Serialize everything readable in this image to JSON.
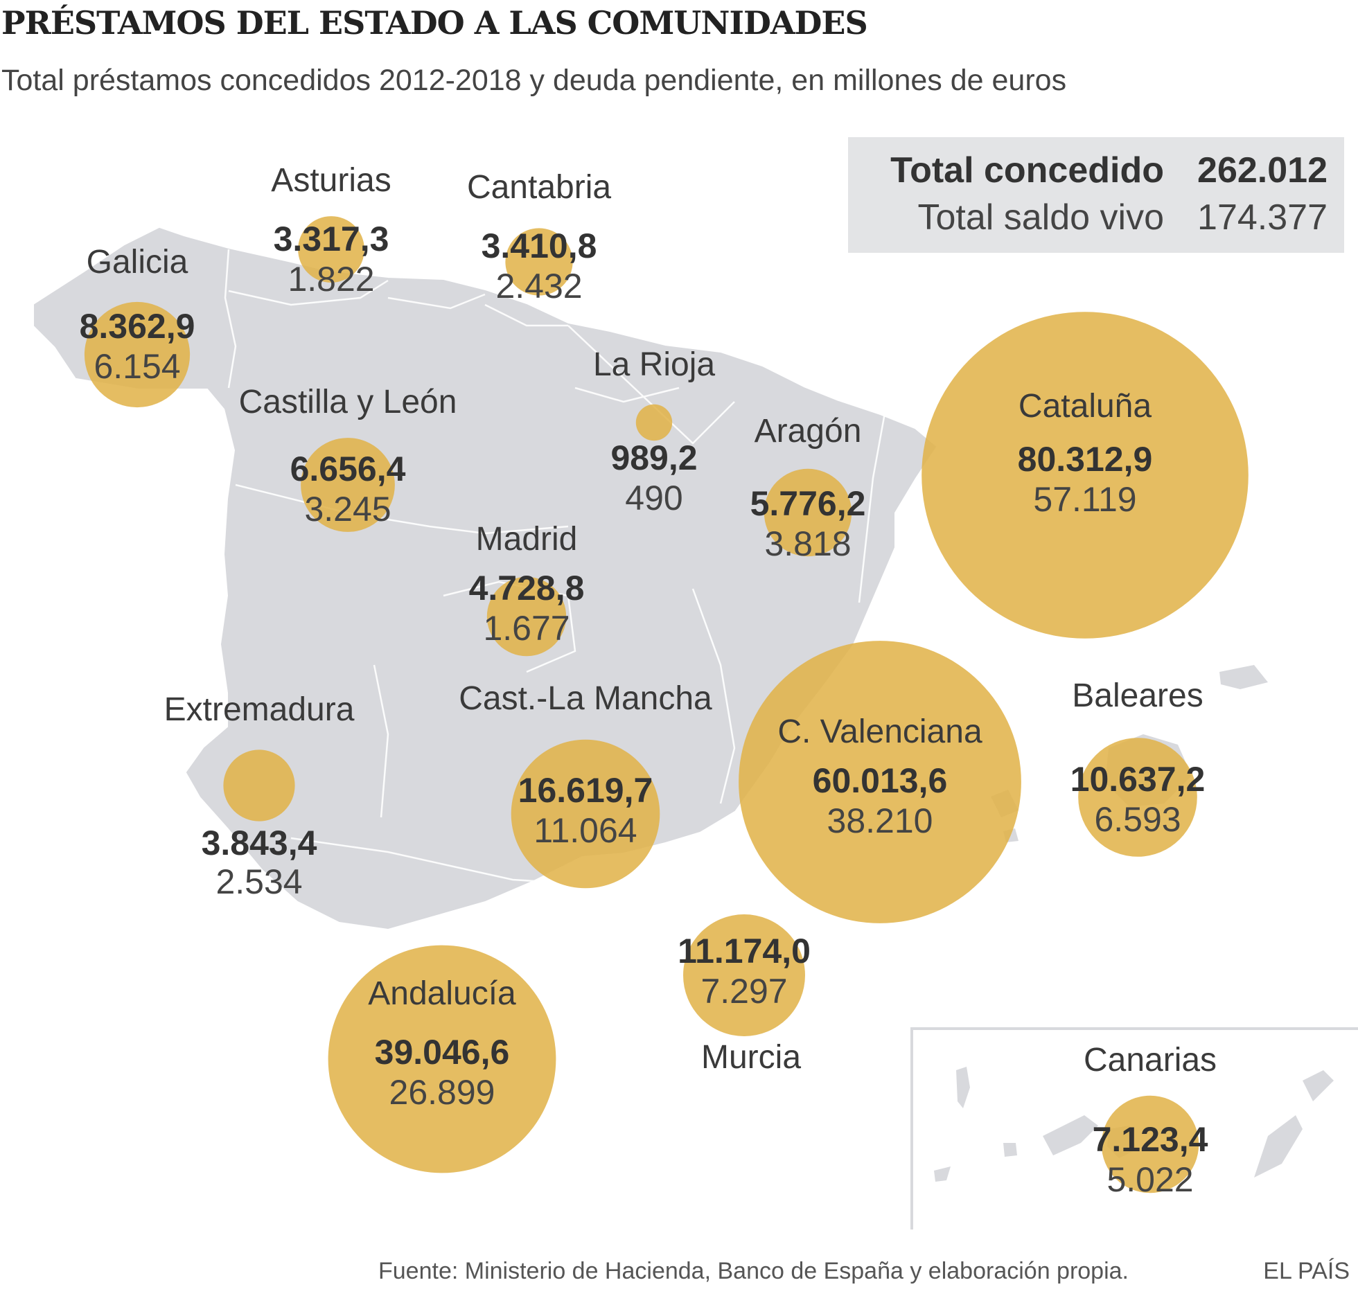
{
  "header": {
    "title": "PRÉSTAMOS DEL ESTADO A LAS COMUNIDADES",
    "subtitle": "Total préstamos concedidos 2012-2018 y deuda pendiente, en millones de euros"
  },
  "totals": {
    "granted_label": "Total concedido",
    "granted_value": "262.012",
    "outstanding_label": "Total saldo vivo",
    "outstanding_value": "174.377"
  },
  "colors": {
    "bubble": "#e1b248",
    "land": "#d8d9dd",
    "border": "#ffffff",
    "text": "#333333"
  },
  "chart_data": {
    "type": "proportional-symbol-map",
    "size_metric": "Total préstamos concedidos 2012-2018",
    "regions": [
      {
        "name": "Galicia",
        "granted": 8362.9,
        "outstanding": 6154,
        "granted_label": "8.362,9",
        "outstanding_label": "6.154"
      },
      {
        "name": "Asturias",
        "granted": 3317.3,
        "outstanding": 1822,
        "granted_label": "3.317,3",
        "outstanding_label": "1.822"
      },
      {
        "name": "Cantabria",
        "granted": 3410.8,
        "outstanding": 2432,
        "granted_label": "3.410,8",
        "outstanding_label": "2.432"
      },
      {
        "name": "La Rioja",
        "granted": 989.2,
        "outstanding": 490,
        "granted_label": "989,2",
        "outstanding_label": "490"
      },
      {
        "name": "Castilla y León",
        "granted": 6656.4,
        "outstanding": 3245,
        "granted_label": "6.656,4",
        "outstanding_label": "3.245"
      },
      {
        "name": "Aragón",
        "granted": 5776.2,
        "outstanding": 3818,
        "granted_label": "5.776,2",
        "outstanding_label": "3.818"
      },
      {
        "name": "Cataluña",
        "granted": 80312.9,
        "outstanding": 57119,
        "granted_label": "80.312,9",
        "outstanding_label": "57.119"
      },
      {
        "name": "Madrid",
        "granted": 4728.8,
        "outstanding": 1677,
        "granted_label": "4.728,8",
        "outstanding_label": "1.677"
      },
      {
        "name": "Extremadura",
        "granted": 3843.4,
        "outstanding": 2534,
        "granted_label": "3.843,4",
        "outstanding_label": "2.534"
      },
      {
        "name": "Cast.-La Mancha",
        "granted": 16619.7,
        "outstanding": 11064,
        "granted_label": "16.619,7",
        "outstanding_label": "11.064"
      },
      {
        "name": "C. Valenciana",
        "granted": 60013.6,
        "outstanding": 38210,
        "granted_label": "60.013,6",
        "outstanding_label": "38.210"
      },
      {
        "name": "Baleares",
        "granted": 10637.2,
        "outstanding": 6593,
        "granted_label": "10.637,2",
        "outstanding_label": "6.593"
      },
      {
        "name": "Murcia",
        "granted": 11174.0,
        "outstanding": 7297,
        "granted_label": "11.174,0",
        "outstanding_label": "7.297"
      },
      {
        "name": "Andalucía",
        "granted": 39046.6,
        "outstanding": 26899,
        "granted_label": "39.046,6",
        "outstanding_label": "26.899"
      },
      {
        "name": "Canarias",
        "granted": 7123.4,
        "outstanding": 5022,
        "granted_label": "7.123,4",
        "outstanding_label": "5.022"
      }
    ]
  },
  "footer": {
    "source": "Fuente: Ministerio de Hacienda, Banco de España y elaboración propia.",
    "brand": "EL PAÍS"
  }
}
